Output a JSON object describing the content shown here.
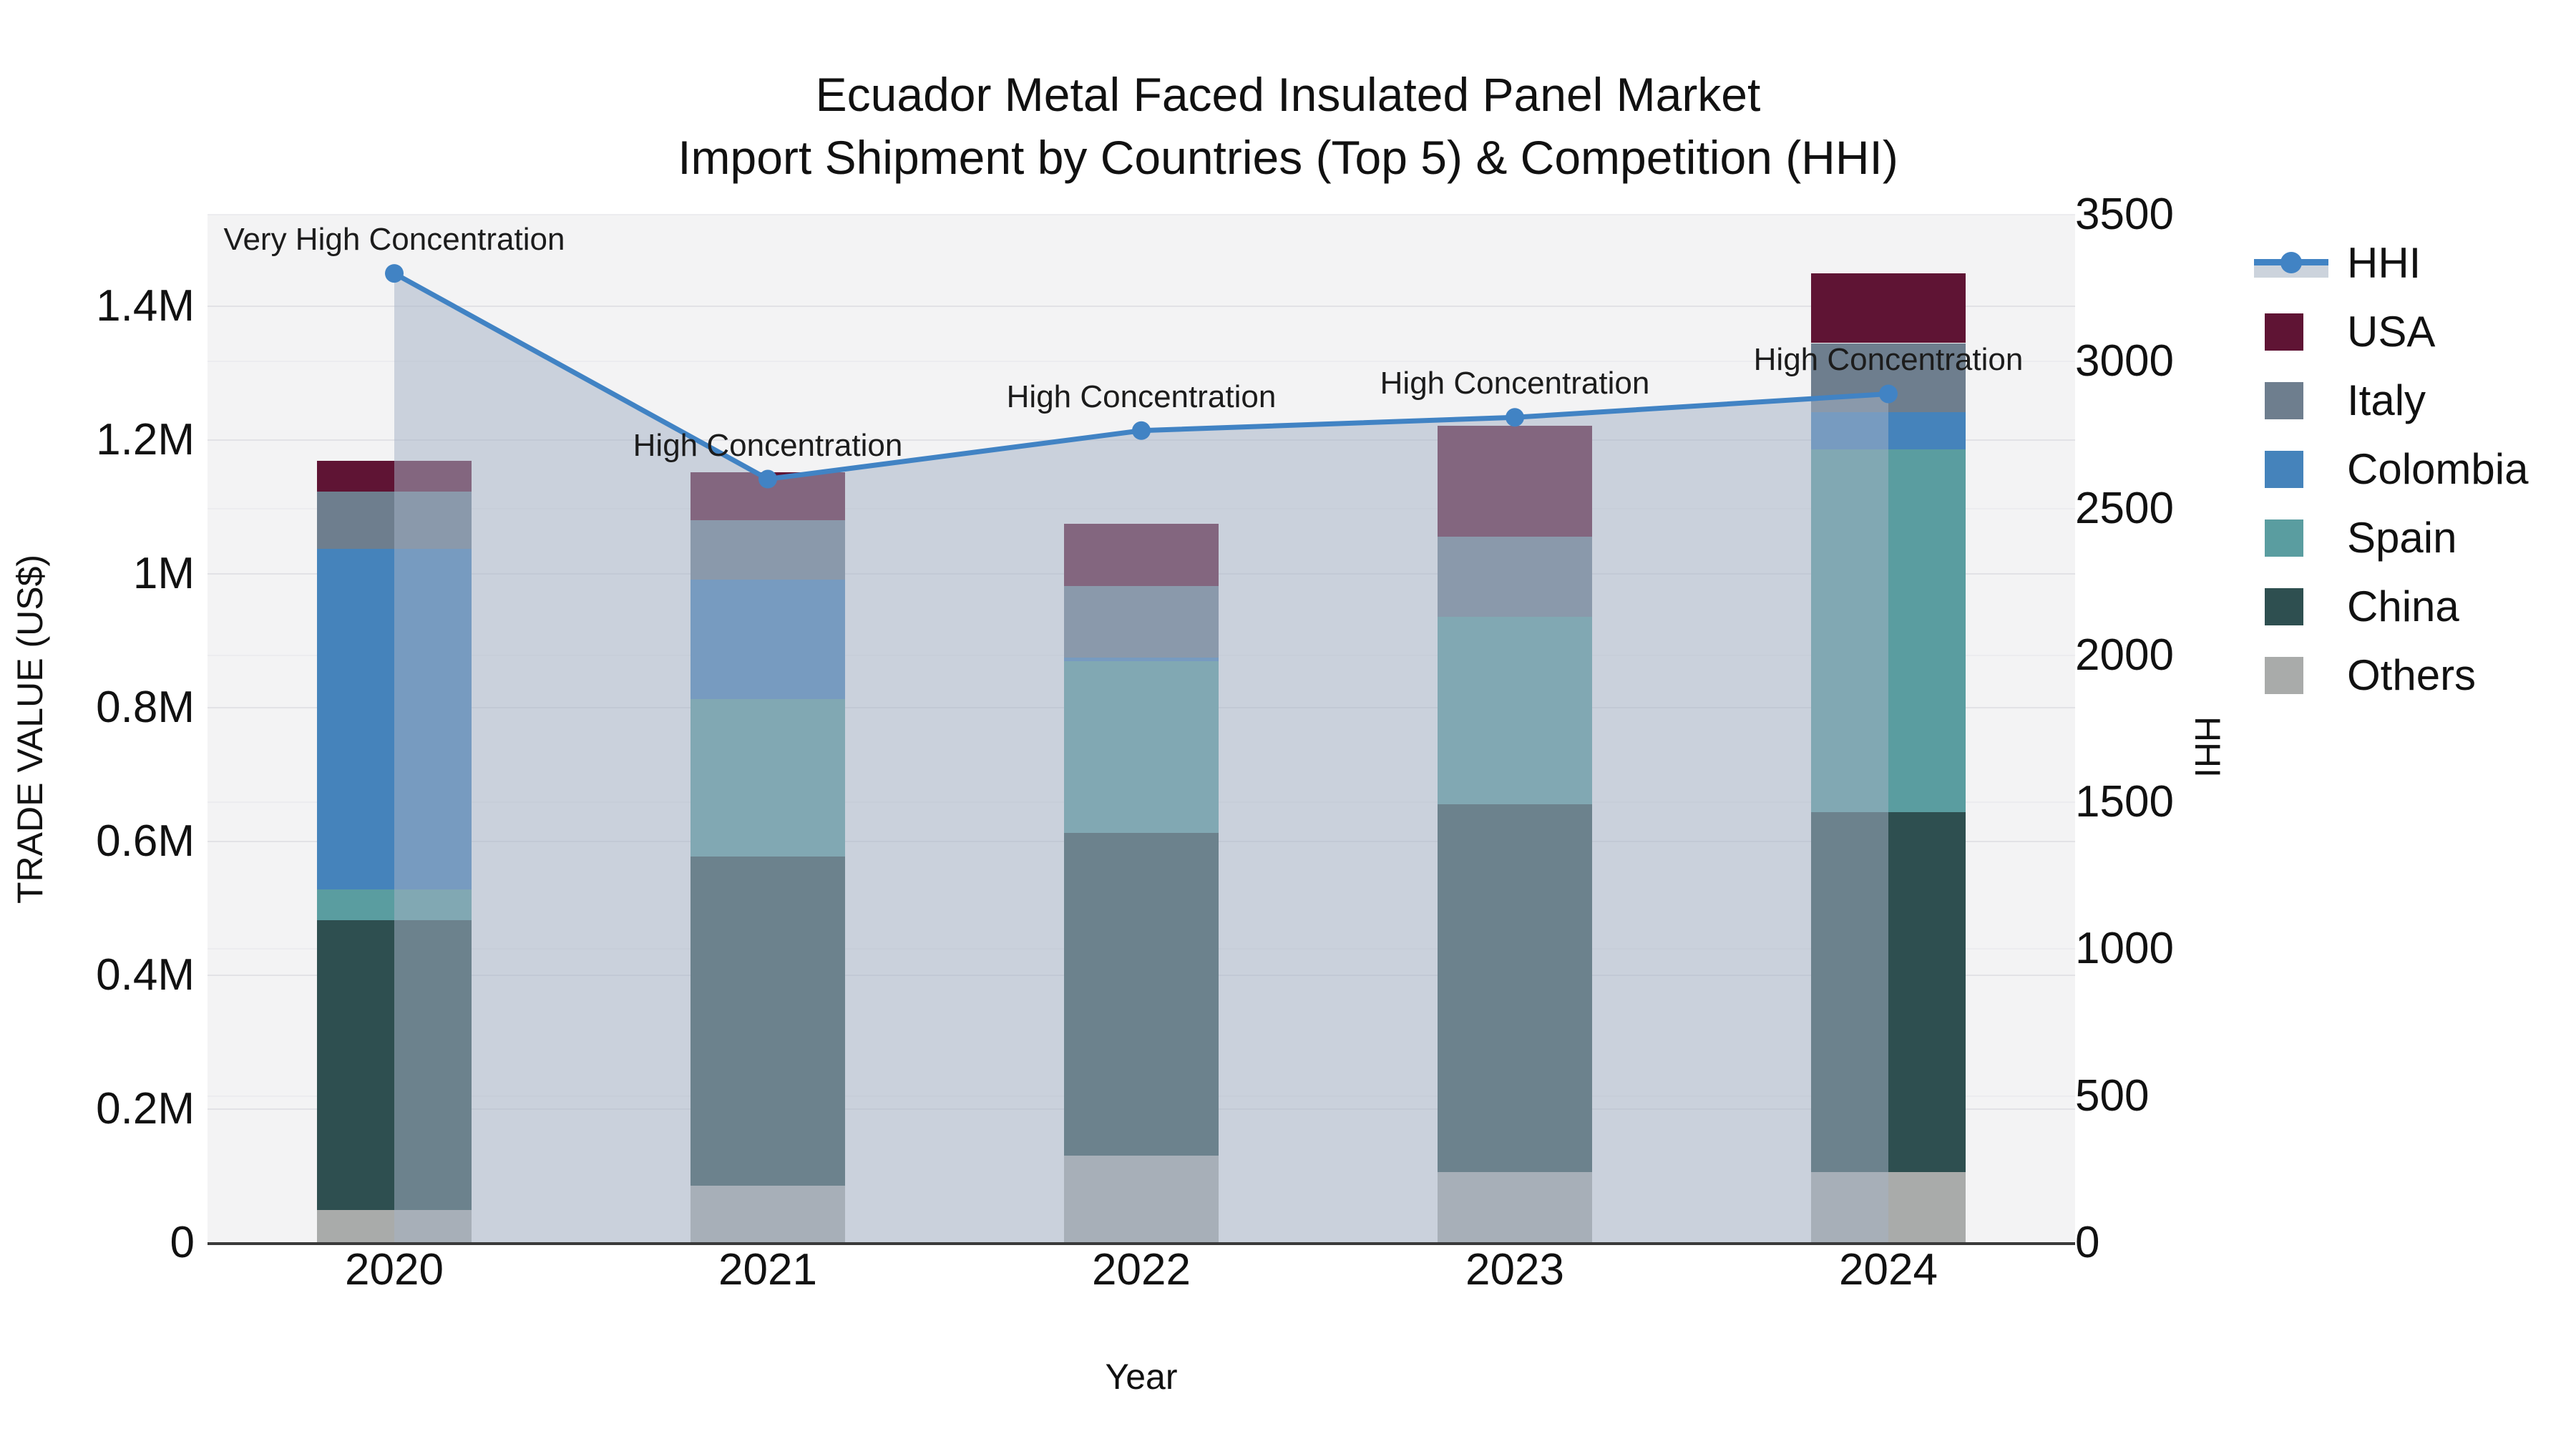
{
  "title": {
    "line1": "Ecuador Metal Faced Insulated Panel Market",
    "line2": "Import Shipment by Countries (Top 5) & Competition (HHI)"
  },
  "axes": {
    "y_left": {
      "title": "TRADE VALUE (US$)",
      "ticks": [
        {
          "label": "0",
          "value": 0
        },
        {
          "label": "0.2M",
          "value": 200000
        },
        {
          "label": "0.4M",
          "value": 400000
        },
        {
          "label": "0.6M",
          "value": 600000
        },
        {
          "label": "0.8M",
          "value": 800000
        },
        {
          "label": "1M",
          "value": 1000000
        },
        {
          "label": "1.2M",
          "value": 1200000
        },
        {
          "label": "1.4M",
          "value": 1400000
        }
      ]
    },
    "y_right": {
      "title": "HHI",
      "ticks": [
        {
          "label": "0",
          "value": 0
        },
        {
          "label": "500",
          "value": 500
        },
        {
          "label": "1000",
          "value": 1000
        },
        {
          "label": "1500",
          "value": 1500
        },
        {
          "label": "2000",
          "value": 2000
        },
        {
          "label": "2500",
          "value": 2500
        },
        {
          "label": "3000",
          "value": 3000
        },
        {
          "label": "3500",
          "value": 3500
        }
      ]
    },
    "x": {
      "title": "Year",
      "categories": [
        "2020",
        "2021",
        "2022",
        "2023",
        "2024"
      ]
    }
  },
  "legend": {
    "items": [
      {
        "id": "hhi",
        "label": "HHI",
        "type": "line",
        "color": "#4183c4",
        "fill_color": "#ccd3dc"
      },
      {
        "id": "usa",
        "label": "USA",
        "type": "swatch",
        "color": "#5f1434"
      },
      {
        "id": "italy",
        "label": "Italy",
        "type": "swatch",
        "color": "#6e7e8e"
      },
      {
        "id": "colombia",
        "label": "Colombia",
        "type": "swatch",
        "color": "#4583bb"
      },
      {
        "id": "spain",
        "label": "Spain",
        "type": "swatch",
        "color": "#5a9da0"
      },
      {
        "id": "china",
        "label": "China",
        "type": "swatch",
        "color": "#2e4f50"
      },
      {
        "id": "others",
        "label": "Others",
        "type": "swatch",
        "color": "#a9abaa"
      }
    ]
  },
  "annotations": [
    {
      "year": "2020",
      "text": "Very High Concentration"
    },
    {
      "year": "2021",
      "text": "High Concentration"
    },
    {
      "year": "2022",
      "text": "High Concentration"
    },
    {
      "year": "2023",
      "text": "High Concentration"
    },
    {
      "year": "2024",
      "text": "High Concentration"
    }
  ],
  "chart_data": {
    "type": "bar+line",
    "title": "Ecuador Metal Faced Insulated Panel Market — Import Shipment by Countries (Top 5) & Competition (HHI)",
    "categories": [
      "2020",
      "2021",
      "2022",
      "2023",
      "2024"
    ],
    "xlabel": "Year",
    "ylabel_left": "TRADE VALUE (US$)",
    "ylabel_right": "HHI",
    "y_left_range": [
      0,
      1537000
    ],
    "y_right_range": [
      0,
      3500
    ],
    "grid": true,
    "legend_position": "right",
    "bar_stack_order": "bottom-to-top",
    "series": [
      {
        "name": "Others",
        "color": "#a9abaa",
        "values": [
          49000,
          86000,
          131000,
          106000,
          106000
        ]
      },
      {
        "name": "China",
        "color": "#2e4f50",
        "values": [
          433000,
          492000,
          482000,
          550000,
          538000
        ]
      },
      {
        "name": "Spain",
        "color": "#5a9da0",
        "values": [
          46000,
          235000,
          257000,
          280000,
          542000
        ]
      },
      {
        "name": "Colombia",
        "color": "#4583bb",
        "values": [
          510000,
          178000,
          5000,
          0,
          56000
        ]
      },
      {
        "name": "Italy",
        "color": "#6e7e8e",
        "values": [
          85000,
          89000,
          107000,
          120000,
          103000
        ]
      },
      {
        "name": "USA",
        "color": "#5f1434",
        "values": [
          46000,
          72000,
          93000,
          165000,
          104000
        ]
      }
    ],
    "bar_totals": [
      1169000,
      1152000,
      1075000,
      1221000,
      1449000
    ],
    "line_series": {
      "name": "HHI",
      "color": "#4183c4",
      "area_fill": "rgba(165,178,198,0.52)",
      "values": [
        3300,
        2600,
        2765,
        2810,
        2890
      ]
    }
  },
  "colors": {
    "page_bg": "#ffffff",
    "plot_bg": "#f3f3f4",
    "grid_left": "#e2e2e6",
    "grid_right": "#ececef",
    "axis_line": "#3a3a3a",
    "text": "#111111"
  }
}
